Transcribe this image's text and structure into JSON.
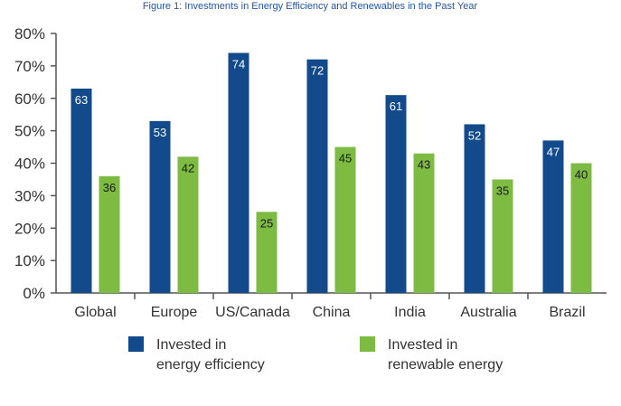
{
  "chart_data": {
    "type": "bar",
    "title": "Figure 1: Investments in Energy Efficiency and Renewables in the Past Year",
    "categories": [
      "Global",
      "Europe",
      "US/Canada",
      "China",
      "India",
      "Australia",
      "Brazil"
    ],
    "series": [
      {
        "name": "Invested in energy efficiency",
        "legend_lines": [
          "Invested in",
          "energy efficiency"
        ],
        "color": "#124a8c",
        "values": [
          63,
          53,
          74,
          72,
          61,
          52,
          47
        ],
        "label_color": "#ffffff"
      },
      {
        "name": "Invested in renewable energy",
        "legend_lines": [
          "Invested in",
          "renewable energy"
        ],
        "color": "#7dbb42",
        "values": [
          36,
          42,
          25,
          45,
          43,
          35,
          40
        ],
        "label_color": "#1a1a1a"
      }
    ],
    "y_ticks": [
      "0%",
      "10%",
      "20%",
      "30%",
      "40%",
      "50%",
      "60%",
      "70%",
      "80%"
    ],
    "ylim": [
      0,
      80
    ],
    "grid": false,
    "legend_position": "bottom"
  }
}
